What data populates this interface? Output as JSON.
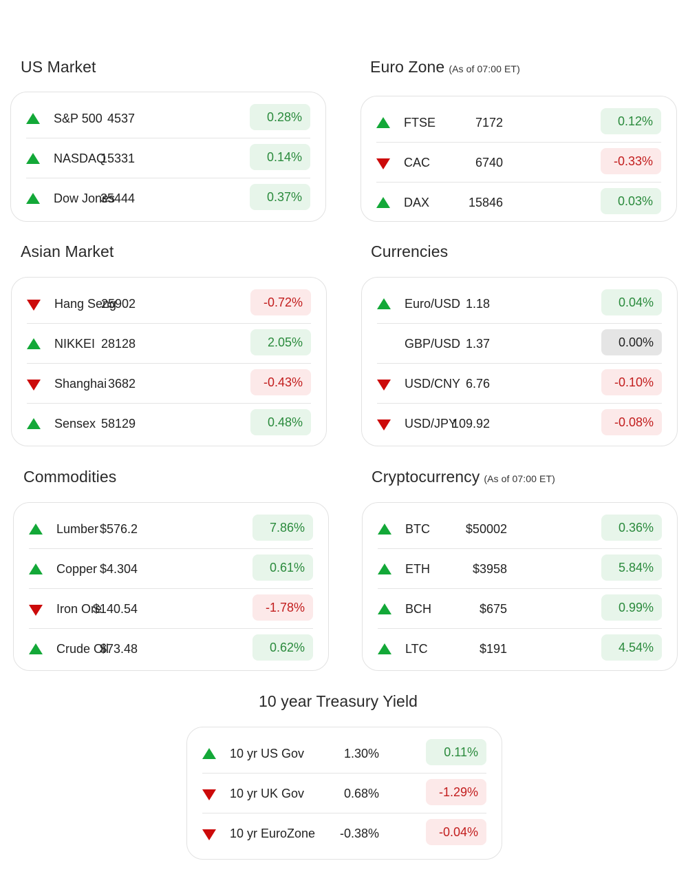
{
  "us_market": {
    "title": "US Market",
    "rows": [
      {
        "name": "S&P 500",
        "value": "4537",
        "change": "0.28%",
        "dir": "up"
      },
      {
        "name": "NASDAQ",
        "value": "15331",
        "change": "0.14%",
        "dir": "up"
      },
      {
        "name": "Dow Jones",
        "value": "35444",
        "change": "0.37%",
        "dir": "up"
      }
    ]
  },
  "euro_zone": {
    "title": "Euro Zone",
    "note": "(As of 07:00 ET)",
    "rows": [
      {
        "name": "FTSE",
        "value": "7172",
        "change": "0.12%",
        "dir": "up"
      },
      {
        "name": "CAC",
        "value": "6740",
        "change": "-0.33%",
        "dir": "down"
      },
      {
        "name": "DAX",
        "value": "15846",
        "change": "0.03%",
        "dir": "up"
      }
    ]
  },
  "asian_market": {
    "title": "Asian Market",
    "rows": [
      {
        "name": "Hang Seng",
        "value": "25902",
        "change": "-0.72%",
        "dir": "down"
      },
      {
        "name": "NIKKEI",
        "value": "28128",
        "change": "2.05%",
        "dir": "up"
      },
      {
        "name": "Shanghai",
        "value": "3682",
        "change": "-0.43%",
        "dir": "down"
      },
      {
        "name": "Sensex",
        "value": "58129",
        "change": "0.48%",
        "dir": "up"
      }
    ]
  },
  "currencies": {
    "title": "Currencies",
    "rows": [
      {
        "name": "Euro/USD",
        "value": "1.18",
        "change": "0.04%",
        "dir": "up"
      },
      {
        "name": "GBP/USD",
        "value": "1.37",
        "change": "0.00%",
        "dir": "flat"
      },
      {
        "name": "USD/CNY",
        "value": "6.76",
        "change": "-0.10%",
        "dir": "down"
      },
      {
        "name": "USD/JPY",
        "value": "109.92",
        "change": "-0.08%",
        "dir": "down"
      }
    ]
  },
  "commodities": {
    "title": "Commodities",
    "rows": [
      {
        "name": "Lumber",
        "value": "$576.2",
        "change": "7.86%",
        "dir": "up"
      },
      {
        "name": "Copper",
        "value": "$4.304",
        "change": "0.61%",
        "dir": "up"
      },
      {
        "name": "Iron Ore",
        "value": "$140.54",
        "change": "-1.78%",
        "dir": "down"
      },
      {
        "name": "Crude Oil",
        "value": "$73.48",
        "change": "0.62%",
        "dir": "up"
      }
    ]
  },
  "cryptocurrency": {
    "title": "Cryptocurrency",
    "note": "(As of 07:00 ET)",
    "rows": [
      {
        "name": "BTC",
        "value": "$50002",
        "change": "0.36%",
        "dir": "up"
      },
      {
        "name": "ETH",
        "value": "$3958",
        "change": "5.84%",
        "dir": "up"
      },
      {
        "name": "BCH",
        "value": "$675",
        "change": "0.99%",
        "dir": "up"
      },
      {
        "name": "LTC",
        "value": "$191",
        "change": "4.54%",
        "dir": "up"
      }
    ]
  },
  "treasury": {
    "title": "10 year Treasury Yield",
    "rows": [
      {
        "name": "10 yr US Gov",
        "value": "1.30%",
        "change": "0.11%",
        "dir": "up"
      },
      {
        "name": "10 yr UK Gov",
        "value": "0.68%",
        "change": "-1.29%",
        "dir": "down"
      },
      {
        "name": "10 yr EuroZone",
        "value": "-0.38%",
        "change": "-0.04%",
        "dir": "down"
      }
    ]
  }
}
